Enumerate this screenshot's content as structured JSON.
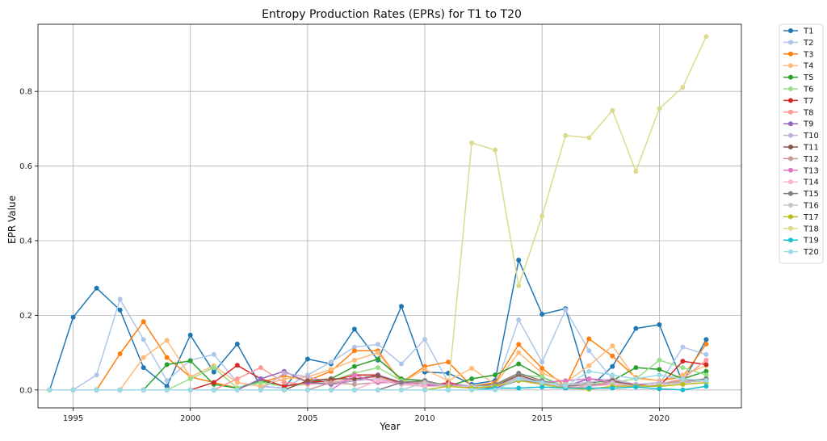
{
  "chart_data": {
    "type": "line",
    "title": "Entropy Production Rates (EPRs) for T1 to T20",
    "xlabel": "Year",
    "ylabel": "EPR Value",
    "xlim": [
      1993.5,
      2023.5
    ],
    "ylim": [
      -0.048,
      0.98
    ],
    "xticks": [
      1995,
      2000,
      2005,
      2010,
      2015,
      2020
    ],
    "yticks": [
      0.0,
      0.2,
      0.4,
      0.6,
      0.8
    ],
    "grid": true,
    "legend_position": "outside-top-right",
    "x": [
      1994,
      1995,
      1996,
      1997,
      1998,
      1999,
      2000,
      2001,
      2002,
      2003,
      2004,
      2005,
      2006,
      2007,
      2008,
      2009,
      2010,
      2011,
      2012,
      2013,
      2014,
      2015,
      2016,
      2017,
      2018,
      2019,
      2020,
      2021,
      2022
    ],
    "series": [
      {
        "name": "T1",
        "color": "#1f77b4",
        "values": [
          0,
          0.195,
          0.273,
          0.214,
          0.06,
          0.01,
          0.147,
          0.048,
          0.123,
          0.01,
          0.005,
          0.083,
          0.07,
          0.163,
          0.08,
          0.224,
          0.048,
          0.045,
          0.015,
          0.025,
          0.348,
          0.203,
          0.218,
          0.005,
          0.063,
          0.165,
          0.175,
          0.02,
          0.135
        ]
      },
      {
        "name": "T2",
        "color": "#aec7e8",
        "values": [
          0,
          0,
          0.04,
          0.243,
          0.135,
          0.025,
          0.08,
          0.095,
          0.02,
          0.01,
          0.005,
          0.04,
          0.075,
          0.115,
          0.122,
          0.07,
          0.136,
          0.02,
          0.01,
          0.005,
          0.188,
          0.075,
          0.215,
          0.105,
          0.03,
          0.01,
          0.015,
          0.115,
          0.095
        ]
      },
      {
        "name": "T3",
        "color": "#ff7f0e",
        "values": [
          0,
          0,
          0,
          0.097,
          0.183,
          0.087,
          0.035,
          0.02,
          0.005,
          0.02,
          0.038,
          0.025,
          0.05,
          0.105,
          0.105,
          0.02,
          0.063,
          0.075,
          0.01,
          0.02,
          0.122,
          0.058,
          0.01,
          0.137,
          0.091,
          0.033,
          0.025,
          0.035,
          0.123
        ]
      },
      {
        "name": "T4",
        "color": "#ffbb78",
        "values": [
          0,
          0,
          0,
          0,
          0.087,
          0.133,
          0.035,
          0.065,
          0.02,
          0.01,
          0.03,
          0.035,
          0.055,
          0.08,
          0.1,
          0.02,
          0.055,
          0.025,
          0.058,
          0.015,
          0.1,
          0.045,
          0.02,
          0.065,
          0.118,
          0.03,
          0.025,
          0.04,
          0.065
        ]
      },
      {
        "name": "T5",
        "color": "#2ca02c",
        "values": [
          0,
          0,
          0,
          0,
          0,
          0.068,
          0.078,
          0.015,
          0.005,
          0.025,
          0.01,
          0.02,
          0.03,
          0.063,
          0.083,
          0.03,
          0.025,
          0.01,
          0.03,
          0.04,
          0.07,
          0.035,
          0.005,
          0.02,
          0.025,
          0.06,
          0.055,
          0.03,
          0.05
        ]
      },
      {
        "name": "T6",
        "color": "#98df8a",
        "values": [
          0,
          0,
          0,
          0,
          0,
          0,
          0.03,
          0.06,
          0.005,
          0.02,
          0.01,
          0.015,
          0.025,
          0.045,
          0.06,
          0.025,
          0.02,
          0.01,
          0.01,
          0.015,
          0.04,
          0.035,
          0.01,
          0.015,
          0.02,
          0.03,
          0.08,
          0.06,
          0.04
        ]
      },
      {
        "name": "T7",
        "color": "#d62728",
        "values": [
          0,
          0,
          0,
          0,
          0,
          0,
          0,
          0.02,
          0.066,
          0.03,
          0.01,
          0.02,
          0.025,
          0.04,
          0.04,
          0.015,
          0.01,
          0.02,
          0.005,
          0.01,
          0.035,
          0.02,
          0.005,
          0.01,
          0.02,
          0.015,
          0.01,
          0.077,
          0.068
        ]
      },
      {
        "name": "T8",
        "color": "#ff9896",
        "values": [
          0,
          0,
          0,
          0,
          0,
          0,
          0,
          0,
          0.03,
          0.06,
          0.02,
          0.015,
          0.02,
          0.03,
          0.035,
          0.015,
          0.01,
          0.01,
          0.005,
          0.01,
          0.03,
          0.015,
          0.005,
          0.01,
          0.015,
          0.01,
          0.015,
          0.03,
          0.08
        ]
      },
      {
        "name": "T9",
        "color": "#9467bd",
        "values": [
          0,
          0,
          0,
          0,
          0,
          0,
          0,
          0,
          0,
          0.03,
          0.05,
          0.02,
          0.015,
          0.025,
          0.04,
          0.02,
          0.015,
          0.01,
          0.01,
          0.005,
          0.025,
          0.02,
          0.01,
          0.03,
          0.025,
          0.01,
          0.015,
          0.02,
          0.03
        ]
      },
      {
        "name": "T10",
        "color": "#c5b0d5",
        "values": [
          0,
          0,
          0,
          0,
          0,
          0,
          0,
          0,
          0,
          0,
          0.045,
          0.035,
          0.02,
          0.025,
          0.03,
          0.015,
          0.02,
          0.01,
          0.01,
          0.01,
          0.035,
          0.02,
          0.015,
          0.02,
          0.03,
          0.015,
          0.02,
          0.02,
          0.025
        ]
      },
      {
        "name": "T11",
        "color": "#8c564b",
        "values": [
          0,
          0,
          0,
          0,
          0,
          0,
          0,
          0,
          0,
          0,
          0,
          0.025,
          0.03,
          0.03,
          0.038,
          0.02,
          0.025,
          0.01,
          0.01,
          0.01,
          0.04,
          0.02,
          0.01,
          0.01,
          0.025,
          0.01,
          0.015,
          0.02,
          0.025
        ]
      },
      {
        "name": "T12",
        "color": "#c49c94",
        "values": [
          0,
          0,
          0,
          0,
          0,
          0,
          0,
          0,
          0,
          0,
          0,
          0,
          0.02,
          0.015,
          0.02,
          0.02,
          0.02,
          0.015,
          0.01,
          0.01,
          0.03,
          0.02,
          0.01,
          0.015,
          0.02,
          0.01,
          0.015,
          0.025,
          0.03
        ]
      },
      {
        "name": "T13",
        "color": "#e377c2",
        "values": [
          0,
          0,
          0,
          0,
          0,
          0,
          0,
          0,
          0,
          0,
          0,
          0,
          0,
          0.04,
          0.02,
          0.02,
          0.015,
          0.015,
          0.01,
          0.01,
          0.03,
          0.02,
          0.025,
          0.03,
          0.02,
          0.01,
          0.015,
          0.02,
          0.025
        ]
      },
      {
        "name": "T14",
        "color": "#f7b6d2",
        "values": [
          0,
          0,
          0,
          0,
          0,
          0,
          0,
          0,
          0,
          0,
          0,
          0,
          0,
          0,
          0.025,
          0.015,
          0.01,
          0.01,
          0.01,
          0.01,
          0.025,
          0.015,
          0.01,
          0.01,
          0.015,
          0.01,
          0.01,
          0.015,
          0.02
        ]
      },
      {
        "name": "T15",
        "color": "#7f7f7f",
        "values": [
          0,
          0,
          0,
          0,
          0,
          0,
          0,
          0,
          0,
          0,
          0,
          0,
          0,
          0,
          0,
          0.02,
          0.025,
          0.01,
          0.01,
          0.015,
          0.045,
          0.025,
          0.01,
          0.015,
          0.02,
          0.01,
          0.015,
          0.02,
          0.03
        ]
      },
      {
        "name": "T16",
        "color": "#c7c7c7",
        "values": [
          0,
          0,
          0,
          0,
          0,
          0,
          0,
          0,
          0,
          0,
          0,
          0,
          0,
          0,
          0,
          0,
          0.02,
          0.01,
          0.01,
          0.01,
          0.03,
          0.02,
          0.015,
          0.015,
          0.02,
          0.01,
          0.015,
          0.02,
          0.025
        ]
      },
      {
        "name": "T17",
        "color": "#bcbd22",
        "values": [
          0,
          0,
          0,
          0,
          0,
          0,
          0,
          0,
          0,
          0,
          0,
          0,
          0,
          0,
          0,
          0,
          0,
          0.01,
          0.005,
          0.01,
          0.025,
          0.015,
          0.005,
          0.002,
          0.01,
          0.01,
          0.01,
          0.015,
          0.02
        ]
      },
      {
        "name": "T18",
        "color": "#dbdb8d",
        "values": [
          0,
          0,
          0,
          0,
          0,
          0,
          0,
          0,
          0,
          0,
          0,
          0,
          0,
          0,
          0,
          0,
          0,
          0,
          0.662,
          0.643,
          0.279,
          0.466,
          0.682,
          0.676,
          0.749,
          0.586,
          0.754,
          0.811,
          0.947
        ]
      },
      {
        "name": "T19",
        "color": "#17becf",
        "values": [
          0,
          0,
          0,
          0,
          0,
          0,
          0,
          0,
          0,
          0,
          0,
          0,
          0,
          0,
          0,
          0,
          0,
          0,
          0,
          0.005,
          0.005,
          0.008,
          0.005,
          0.005,
          0.005,
          0.008,
          0.003,
          0.0,
          0.01
        ]
      },
      {
        "name": "T20",
        "color": "#9edae5",
        "values": [
          0,
          0,
          0,
          0,
          0,
          0,
          0,
          0,
          0,
          0,
          0,
          0,
          0,
          0,
          0,
          0,
          0,
          0,
          0,
          0,
          0.03,
          0.02,
          0.01,
          0.05,
          0.04,
          0.03,
          0.04,
          0.03,
          0.025
        ]
      }
    ]
  }
}
